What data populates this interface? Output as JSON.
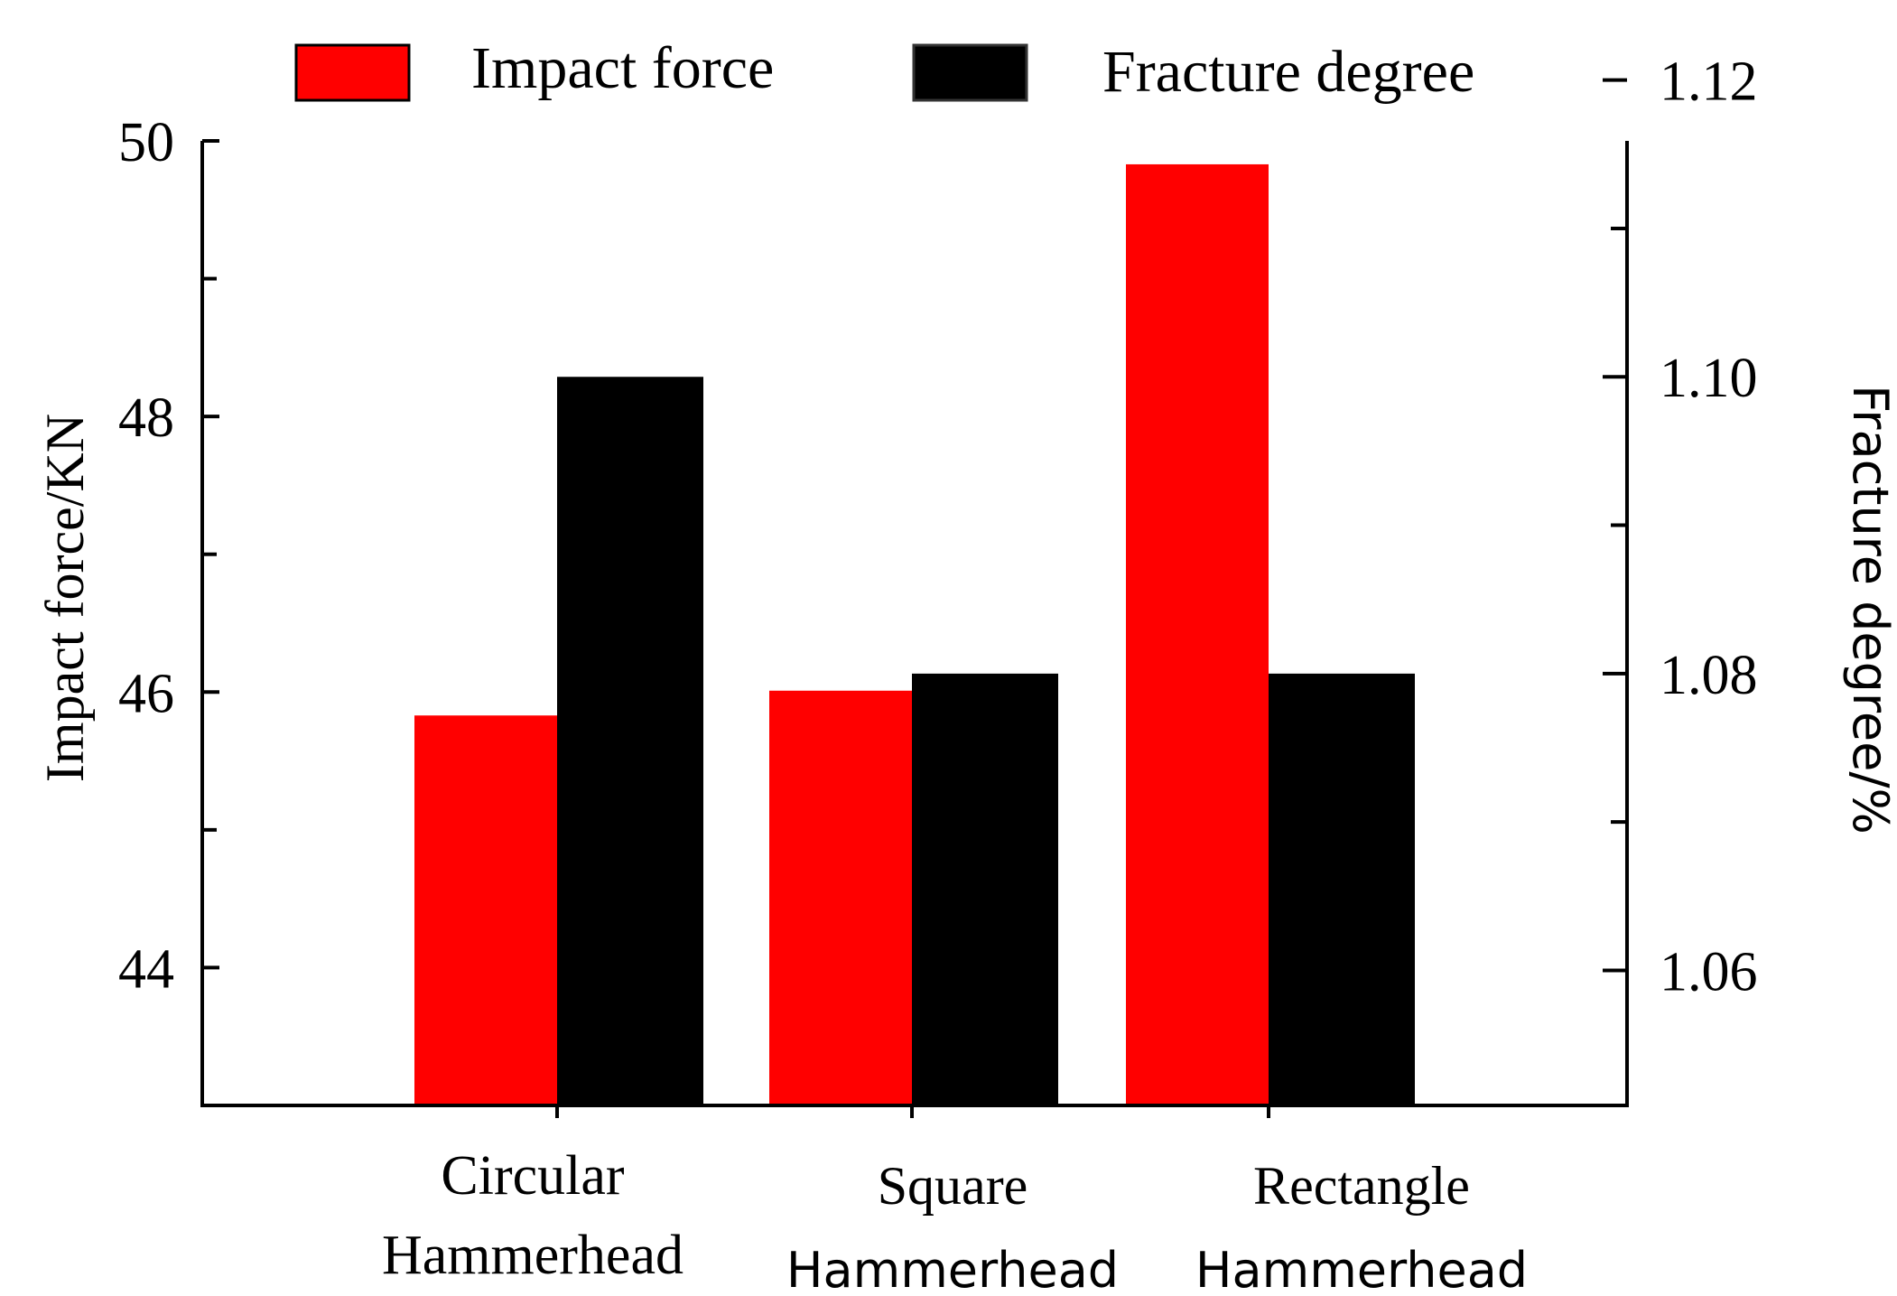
{
  "colors": {
    "impact": "#ff0000",
    "fracture": "#000000",
    "axis": "#000000",
    "background": "#ffffff"
  },
  "chart_data": {
    "type": "bar",
    "title": "",
    "categories": [
      [
        "Circular",
        "Hammerhead"
      ],
      [
        "Square",
        "Hammerhead"
      ],
      [
        "Rectangle",
        "Hammerhead"
      ]
    ],
    "series": [
      {
        "name": "Impact force",
        "axis": "left",
        "color": "#ff0000",
        "values": [
          45.83,
          46.01,
          49.83
        ]
      },
      {
        "name": "Fracture degree",
        "axis": "right",
        "color": "#000000",
        "values": [
          1.1,
          1.08,
          1.08
        ]
      }
    ],
    "left_axis": {
      "label": "Impact force/KN",
      "ylim": [
        43.0,
        50.0
      ],
      "ticks": [
        "44",
        "46",
        "48",
        "50"
      ],
      "tick_values": [
        44,
        46,
        48,
        50
      ],
      "minor_tick_values": [
        45,
        47,
        49
      ]
    },
    "right_axis": {
      "label": "Fracture degree/%",
      "ylim": [
        1.0509,
        1.1159
      ],
      "ticks": [
        "1.06",
        "1.08",
        "1.10",
        "1.12"
      ],
      "tick_values": [
        1.06,
        1.08,
        1.1,
        1.12
      ],
      "minor_tick_values": [
        1.07,
        1.09,
        1.11
      ]
    },
    "legend": {
      "position": "top"
    },
    "grid": false
  }
}
